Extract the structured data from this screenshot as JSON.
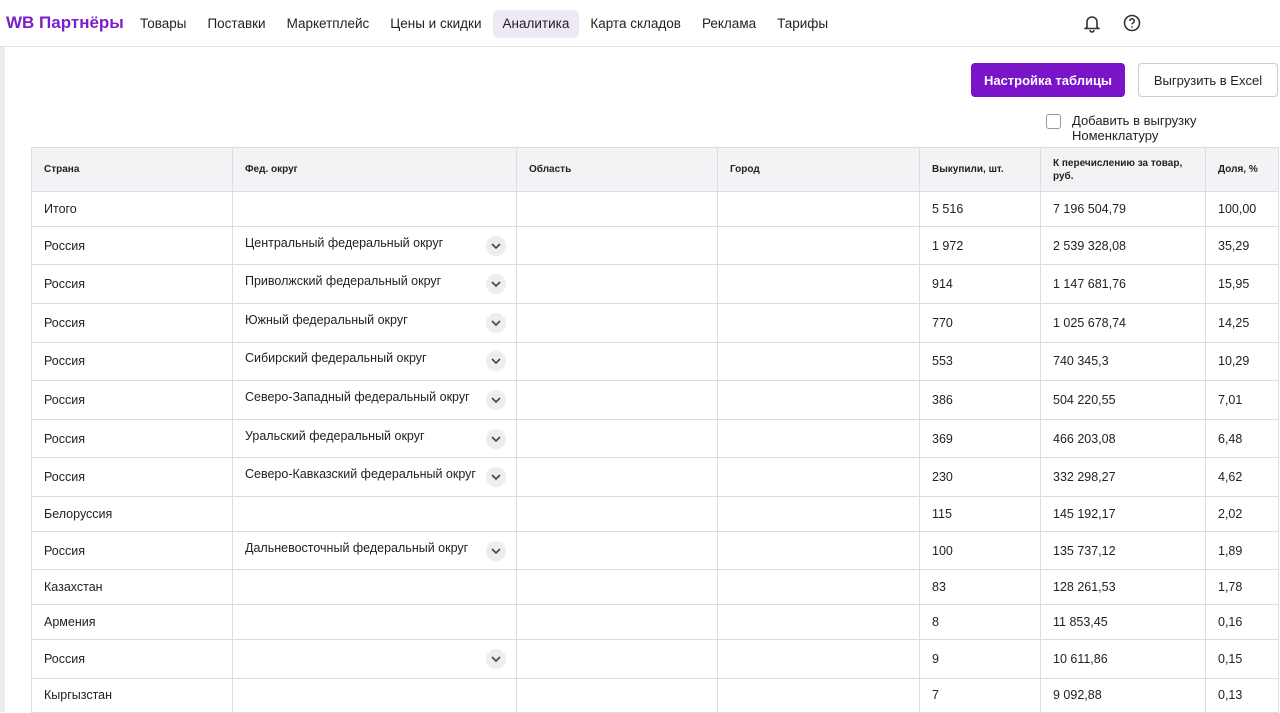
{
  "header": {
    "logo": "WB Партнёры",
    "nav": [
      "Товары",
      "Поставки",
      "Маркетплейс",
      "Цены и скидки",
      "Аналитика",
      "Карта складов",
      "Реклама",
      "Тарифы"
    ],
    "active_nav": 4
  },
  "toolbar": {
    "settings_button": "Настройка таблицы",
    "export_button": "Выгрузить в Excel",
    "checkbox_label": "Добавить в выгрузку Номенклатуру"
  },
  "table": {
    "columns": [
      "Страна",
      "Фед. округ",
      "Область",
      "Город",
      "Выкупили, шт.",
      "К перечислению за товар, руб.",
      "Доля, %"
    ],
    "rows": [
      {
        "country": "Итого",
        "sold": "5 516",
        "payout": "7 196 504,79",
        "share": "100,00"
      },
      {
        "country": "Россия",
        "district": "Центральный федеральный округ",
        "expandable": true,
        "sold": "1 972",
        "payout": "2 539 328,08",
        "share": "35,29"
      },
      {
        "country": "Россия",
        "district": "Приволжский федеральный округ",
        "expandable": true,
        "sold": "914",
        "payout": "1 147 681,76",
        "share": "15,95"
      },
      {
        "country": "Россия",
        "district": "Южный федеральный округ",
        "expandable": true,
        "sold": "770",
        "payout": "1 025 678,74",
        "share": "14,25"
      },
      {
        "country": "Россия",
        "district": "Сибирский федеральный округ",
        "expandable": true,
        "sold": "553",
        "payout": "740 345,3",
        "share": "10,29"
      },
      {
        "country": "Россия",
        "district": "Северо-Западный федеральный округ",
        "expandable": true,
        "sold": "386",
        "payout": "504 220,55",
        "share": "7,01"
      },
      {
        "country": "Россия",
        "district": "Уральский федеральный округ",
        "expandable": true,
        "sold": "369",
        "payout": "466 203,08",
        "share": "6,48"
      },
      {
        "country": "Россия",
        "district": "Северо-Кавказский федеральный округ",
        "expandable": true,
        "sold": "230",
        "payout": "332 298,27",
        "share": "4,62"
      },
      {
        "country": "Белоруссия",
        "sold": "115",
        "payout": "145 192,17",
        "share": "2,02"
      },
      {
        "country": "Россия",
        "district": "Дальневосточный федеральный округ",
        "expandable": true,
        "sold": "100",
        "payout": "135 737,12",
        "share": "1,89"
      },
      {
        "country": "Казахстан",
        "sold": "83",
        "payout": "128 261,53",
        "share": "1,78"
      },
      {
        "country": "Армения",
        "sold": "8",
        "payout": "11 853,45",
        "share": "0,16"
      },
      {
        "country": "Россия",
        "expandable": true,
        "sold": "9",
        "payout": "10 611,86",
        "share": "0,15"
      },
      {
        "country": "Кыргызстан",
        "sold": "7",
        "payout": "9 092,88",
        "share": "0,13"
      }
    ]
  }
}
